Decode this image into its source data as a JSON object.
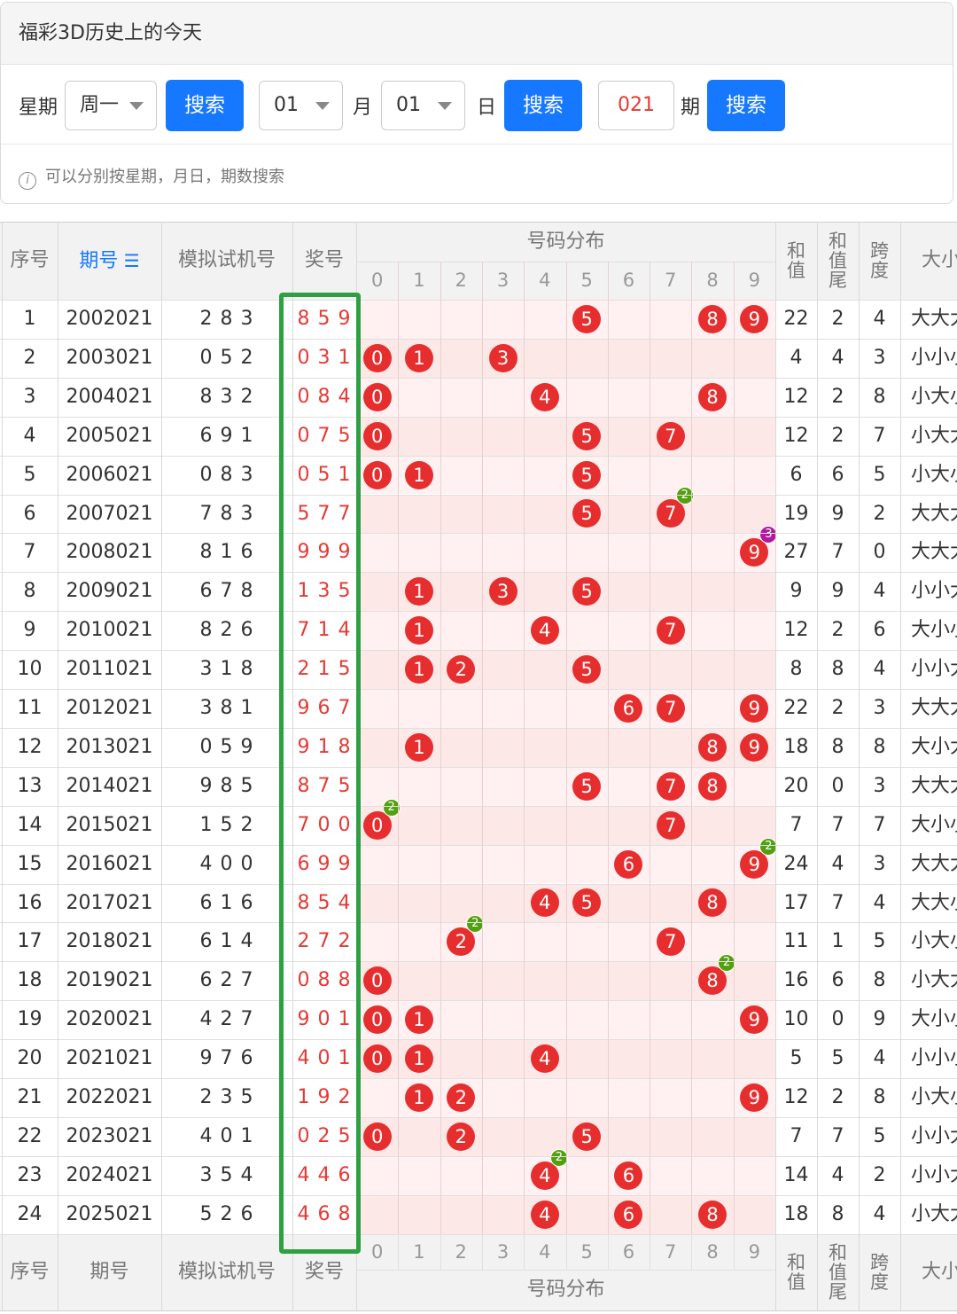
{
  "card": {
    "title": "福彩3D历史上的今天",
    "week_label": "星期",
    "week_value": "周一",
    "search_label": "搜索",
    "month_value": "01",
    "month_label": "月",
    "day_value": "01",
    "day_label": "日",
    "issue_value": "021",
    "issue_label": "期",
    "hint": "可以分别按星期，月日，期数搜索"
  },
  "table": {
    "headers": {
      "index": "序号",
      "issue": "期号",
      "sim": "模拟试机号",
      "prize": "奖号",
      "dist": "号码分布",
      "sum": "和值",
      "sum_tail": "和值尾",
      "span": "跨度",
      "size": "大小"
    },
    "digits": [
      "0",
      "1",
      "2",
      "3",
      "4",
      "5",
      "6",
      "7",
      "8",
      "9"
    ],
    "rows": [
      {
        "idx": "1",
        "issue": "2002021",
        "sim": "2 8 3",
        "prize": "8 5 9",
        "d": [
          8,
          5,
          9
        ],
        "sum": "22",
        "tail": "2",
        "span": "4",
        "size": "大大大"
      },
      {
        "idx": "2",
        "issue": "2003021",
        "sim": "0 5 2",
        "prize": "0 3 1",
        "d": [
          0,
          3,
          1
        ],
        "sum": "4",
        "tail": "4",
        "span": "3",
        "size": "小小小"
      },
      {
        "idx": "3",
        "issue": "2004021",
        "sim": "8 3 2",
        "prize": "0 8 4",
        "d": [
          0,
          8,
          4
        ],
        "sum": "12",
        "tail": "2",
        "span": "8",
        "size": "小大小"
      },
      {
        "idx": "4",
        "issue": "2005021",
        "sim": "6 9 1",
        "prize": "0 7 5",
        "d": [
          0,
          7,
          5
        ],
        "sum": "12",
        "tail": "2",
        "span": "7",
        "size": "小大大"
      },
      {
        "idx": "5",
        "issue": "2006021",
        "sim": "0 8 3",
        "prize": "0 5 1",
        "d": [
          0,
          5,
          1
        ],
        "sum": "6",
        "tail": "6",
        "span": "5",
        "size": "小大小"
      },
      {
        "idx": "6",
        "issue": "2007021",
        "sim": "7 8 3",
        "prize": "5 7 7",
        "d": [
          5,
          7,
          7
        ],
        "sum": "19",
        "tail": "9",
        "span": "2",
        "size": "大大大"
      },
      {
        "idx": "7",
        "issue": "2008021",
        "sim": "8 1 6",
        "prize": "9 9 9",
        "d": [
          9,
          9,
          9
        ],
        "sum": "27",
        "tail": "7",
        "span": "0",
        "size": "大大大"
      },
      {
        "idx": "8",
        "issue": "2009021",
        "sim": "6 7 8",
        "prize": "1 3 5",
        "d": [
          1,
          3,
          5
        ],
        "sum": "9",
        "tail": "9",
        "span": "4",
        "size": "小小大"
      },
      {
        "idx": "9",
        "issue": "2010021",
        "sim": "8 2 6",
        "prize": "7 1 4",
        "d": [
          7,
          1,
          4
        ],
        "sum": "12",
        "tail": "2",
        "span": "6",
        "size": "大小小"
      },
      {
        "idx": "10",
        "issue": "2011021",
        "sim": "3 1 8",
        "prize": "2 1 5",
        "d": [
          2,
          1,
          5
        ],
        "sum": "8",
        "tail": "8",
        "span": "4",
        "size": "小小大"
      },
      {
        "idx": "11",
        "issue": "2012021",
        "sim": "3 8 1",
        "prize": "9 6 7",
        "d": [
          9,
          6,
          7
        ],
        "sum": "22",
        "tail": "2",
        "span": "3",
        "size": "大大大"
      },
      {
        "idx": "12",
        "issue": "2013021",
        "sim": "0 5 9",
        "prize": "9 1 8",
        "d": [
          9,
          1,
          8
        ],
        "sum": "18",
        "tail": "8",
        "span": "8",
        "size": "大小大"
      },
      {
        "idx": "13",
        "issue": "2014021",
        "sim": "9 8 5",
        "prize": "8 7 5",
        "d": [
          8,
          7,
          5
        ],
        "sum": "20",
        "tail": "0",
        "span": "3",
        "size": "大大大"
      },
      {
        "idx": "14",
        "issue": "2015021",
        "sim": "1 5 2",
        "prize": "7 0 0",
        "d": [
          7,
          0,
          0
        ],
        "sum": "7",
        "tail": "7",
        "span": "7",
        "size": "大小小"
      },
      {
        "idx": "15",
        "issue": "2016021",
        "sim": "4 0 0",
        "prize": "6 9 9",
        "d": [
          6,
          9,
          9
        ],
        "sum": "24",
        "tail": "4",
        "span": "3",
        "size": "大大大"
      },
      {
        "idx": "16",
        "issue": "2017021",
        "sim": "6 1 6",
        "prize": "8 5 4",
        "d": [
          8,
          5,
          4
        ],
        "sum": "17",
        "tail": "7",
        "span": "4",
        "size": "大大小"
      },
      {
        "idx": "17",
        "issue": "2018021",
        "sim": "6 1 4",
        "prize": "2 7 2",
        "d": [
          2,
          7,
          2
        ],
        "sum": "11",
        "tail": "1",
        "span": "5",
        "size": "小大小"
      },
      {
        "idx": "18",
        "issue": "2019021",
        "sim": "6 2 7",
        "prize": "0 8 8",
        "d": [
          0,
          8,
          8
        ],
        "sum": "16",
        "tail": "6",
        "span": "8",
        "size": "小大大"
      },
      {
        "idx": "19",
        "issue": "2020021",
        "sim": "4 2 7",
        "prize": "9 0 1",
        "d": [
          9,
          0,
          1
        ],
        "sum": "10",
        "tail": "0",
        "span": "9",
        "size": "大小小"
      },
      {
        "idx": "20",
        "issue": "2021021",
        "sim": "9 7 6",
        "prize": "4 0 1",
        "d": [
          4,
          0,
          1
        ],
        "sum": "5",
        "tail": "5",
        "span": "4",
        "size": "小小小"
      },
      {
        "idx": "21",
        "issue": "2022021",
        "sim": "2 3 5",
        "prize": "1 9 2",
        "d": [
          1,
          9,
          2
        ],
        "sum": "12",
        "tail": "2",
        "span": "8",
        "size": "小大小"
      },
      {
        "idx": "22",
        "issue": "2023021",
        "sim": "4 0 1",
        "prize": "0 2 5",
        "d": [
          0,
          2,
          5
        ],
        "sum": "7",
        "tail": "7",
        "span": "5",
        "size": "小小大"
      },
      {
        "idx": "23",
        "issue": "2024021",
        "sim": "3 5 4",
        "prize": "4 4 6",
        "d": [
          4,
          4,
          6
        ],
        "sum": "14",
        "tail": "4",
        "span": "2",
        "size": "小小大"
      },
      {
        "idx": "24",
        "issue": "2025021",
        "sim": "5 2 6",
        "prize": "4 6 8",
        "d": [
          4,
          6,
          8
        ],
        "sum": "18",
        "tail": "8",
        "span": "4",
        "size": "小大大"
      }
    ]
  },
  "colors": {
    "accent": "#1677ff",
    "prize": "#e53935",
    "ball": "#e62e2e",
    "highlight_box": "#2ea043",
    "badge_double": "#52a00e",
    "badge_triple": "#b5179e"
  }
}
